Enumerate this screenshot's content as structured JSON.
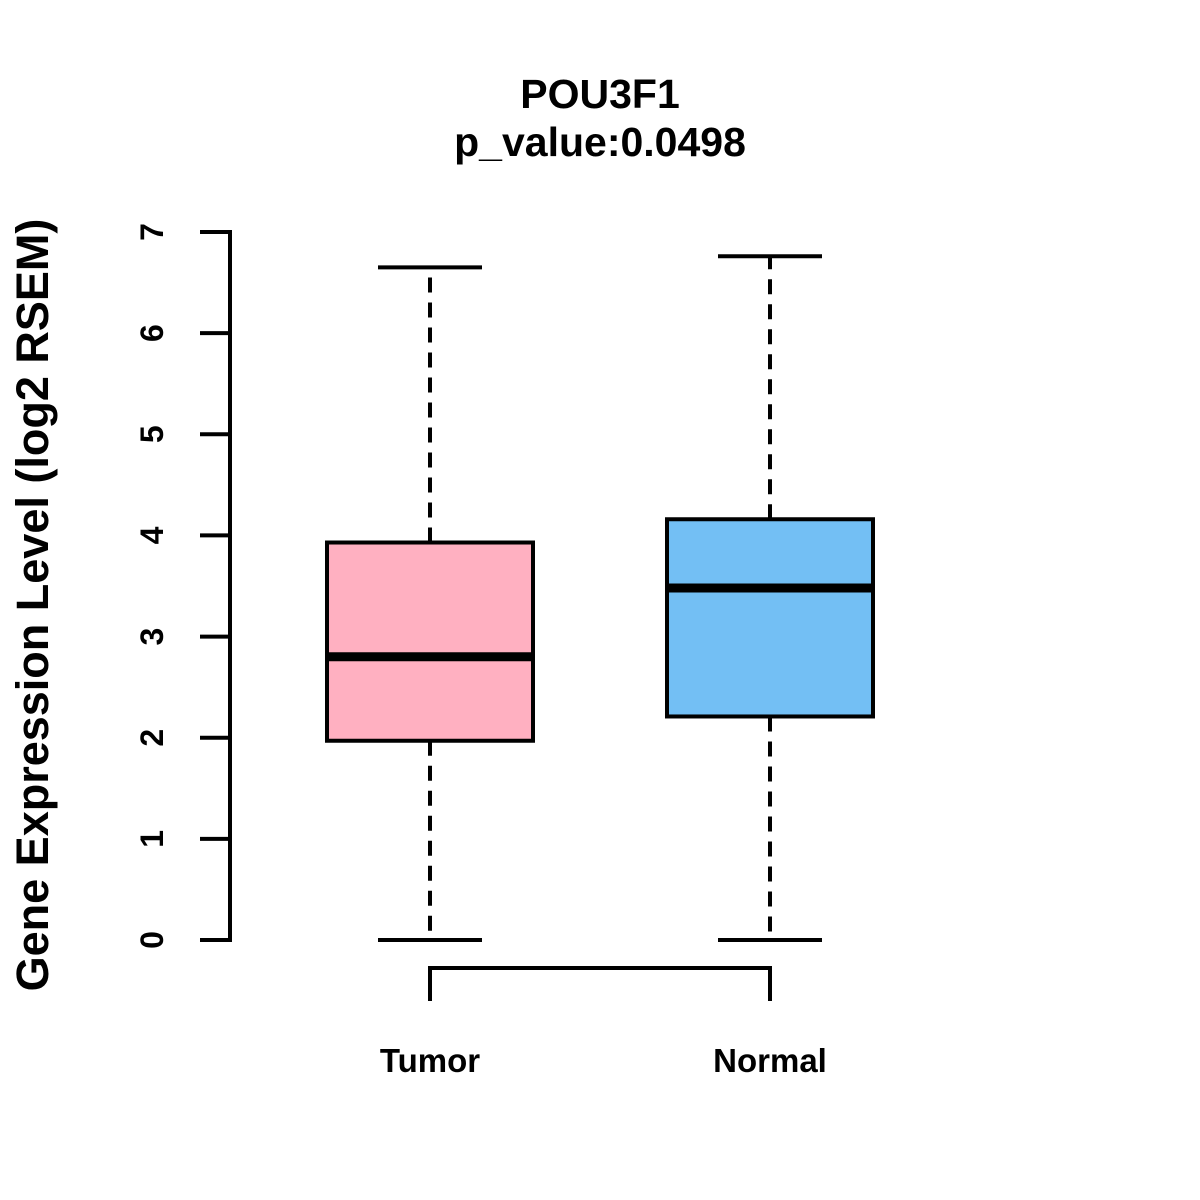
{
  "chart_data": {
    "type": "boxplot",
    "title": "POU3F1",
    "subtitle": "p_value:0.0498",
    "gene": "POU3F1",
    "p_value": 0.0498,
    "ylabel": "Gene Expression Level (log2 RSEM)",
    "ylim": [
      0,
      7
    ],
    "yticks": [
      0,
      1,
      2,
      3,
      4,
      5,
      6,
      7
    ],
    "categories": [
      "Tumor",
      "Normal"
    ],
    "series": [
      {
        "name": "Tumor",
        "color": "#FFB0C1",
        "whisker_low": 0.0,
        "q1": 1.97,
        "median": 2.8,
        "q3": 3.93,
        "whisker_high": 6.65
      },
      {
        "name": "Normal",
        "color": "#73BFF4",
        "whisker_low": 0.0,
        "q1": 2.21,
        "median": 3.48,
        "q3": 4.16,
        "whisker_high": 6.76
      }
    ],
    "border_color": "#000000",
    "axis_color": "#000000",
    "grid": false,
    "legend": "none"
  }
}
